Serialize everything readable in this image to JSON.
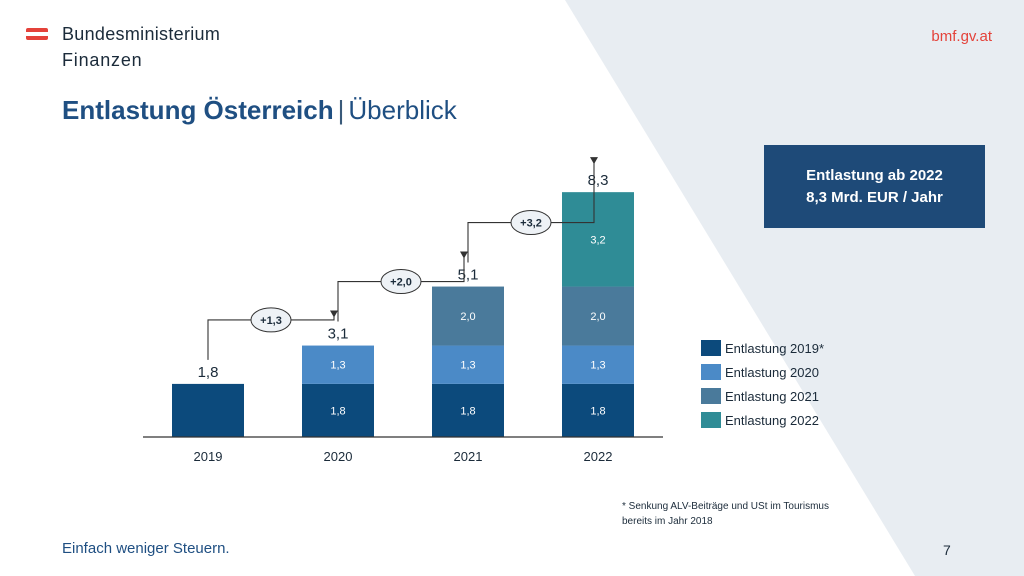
{
  "header": {
    "logo_line1": "Bundesministerium",
    "logo_line2": "Finanzen",
    "site_url": "bmf.gv.at"
  },
  "title": {
    "bold": "Entlastung Österreich",
    "separator": "|",
    "light": "Überblick"
  },
  "info_box": {
    "line1": "Entlastung ab 2022",
    "line2": "8,3 Mrd. EUR / Jahr"
  },
  "footnote": {
    "line1": "* Senkung ALV-Beiträge und USt im Tourismus",
    "line2": "bereits im Jahr 2018"
  },
  "footer": {
    "text": "Einfach weniger Steuern.",
    "page_number": "7"
  },
  "colors": {
    "navy": "#0c4a7c",
    "light_blue": "#4b8ac7",
    "slate": "#4a7a9b",
    "teal": "#2f8c96",
    "brand_red": "#e4423a",
    "title_blue": "#1f4f82"
  },
  "chart_data": {
    "type": "bar",
    "stacked": true,
    "categories": [
      "2019",
      "2020",
      "2021",
      "2022"
    ],
    "series": [
      {
        "name": "Entlastung 2019*",
        "color": "#0c4a7c",
        "values": [
          1.8,
          1.8,
          1.8,
          1.8
        ],
        "labels": [
          "",
          "1,8",
          "1,8",
          "1,8"
        ]
      },
      {
        "name": "Entlastung 2020",
        "color": "#4b8ac7",
        "values": [
          0,
          1.3,
          1.3,
          1.3
        ],
        "labels": [
          "",
          "1,3",
          "1,3",
          "1,3"
        ]
      },
      {
        "name": "Entlastung 2021",
        "color": "#4a7a9b",
        "values": [
          0,
          0,
          2.0,
          2.0
        ],
        "labels": [
          "",
          "",
          "2,0",
          "2,0"
        ]
      },
      {
        "name": "Entlastung 2022",
        "color": "#2f8c96",
        "values": [
          0,
          0,
          0,
          3.2
        ],
        "labels": [
          "",
          "",
          "",
          "3,2"
        ]
      }
    ],
    "totals": [
      "1,8",
      "3,1",
      "5,1",
      "8,3"
    ],
    "increments": [
      "+1,3",
      "+2,0",
      "+3,2"
    ],
    "legend_position": "right",
    "grid": false
  }
}
